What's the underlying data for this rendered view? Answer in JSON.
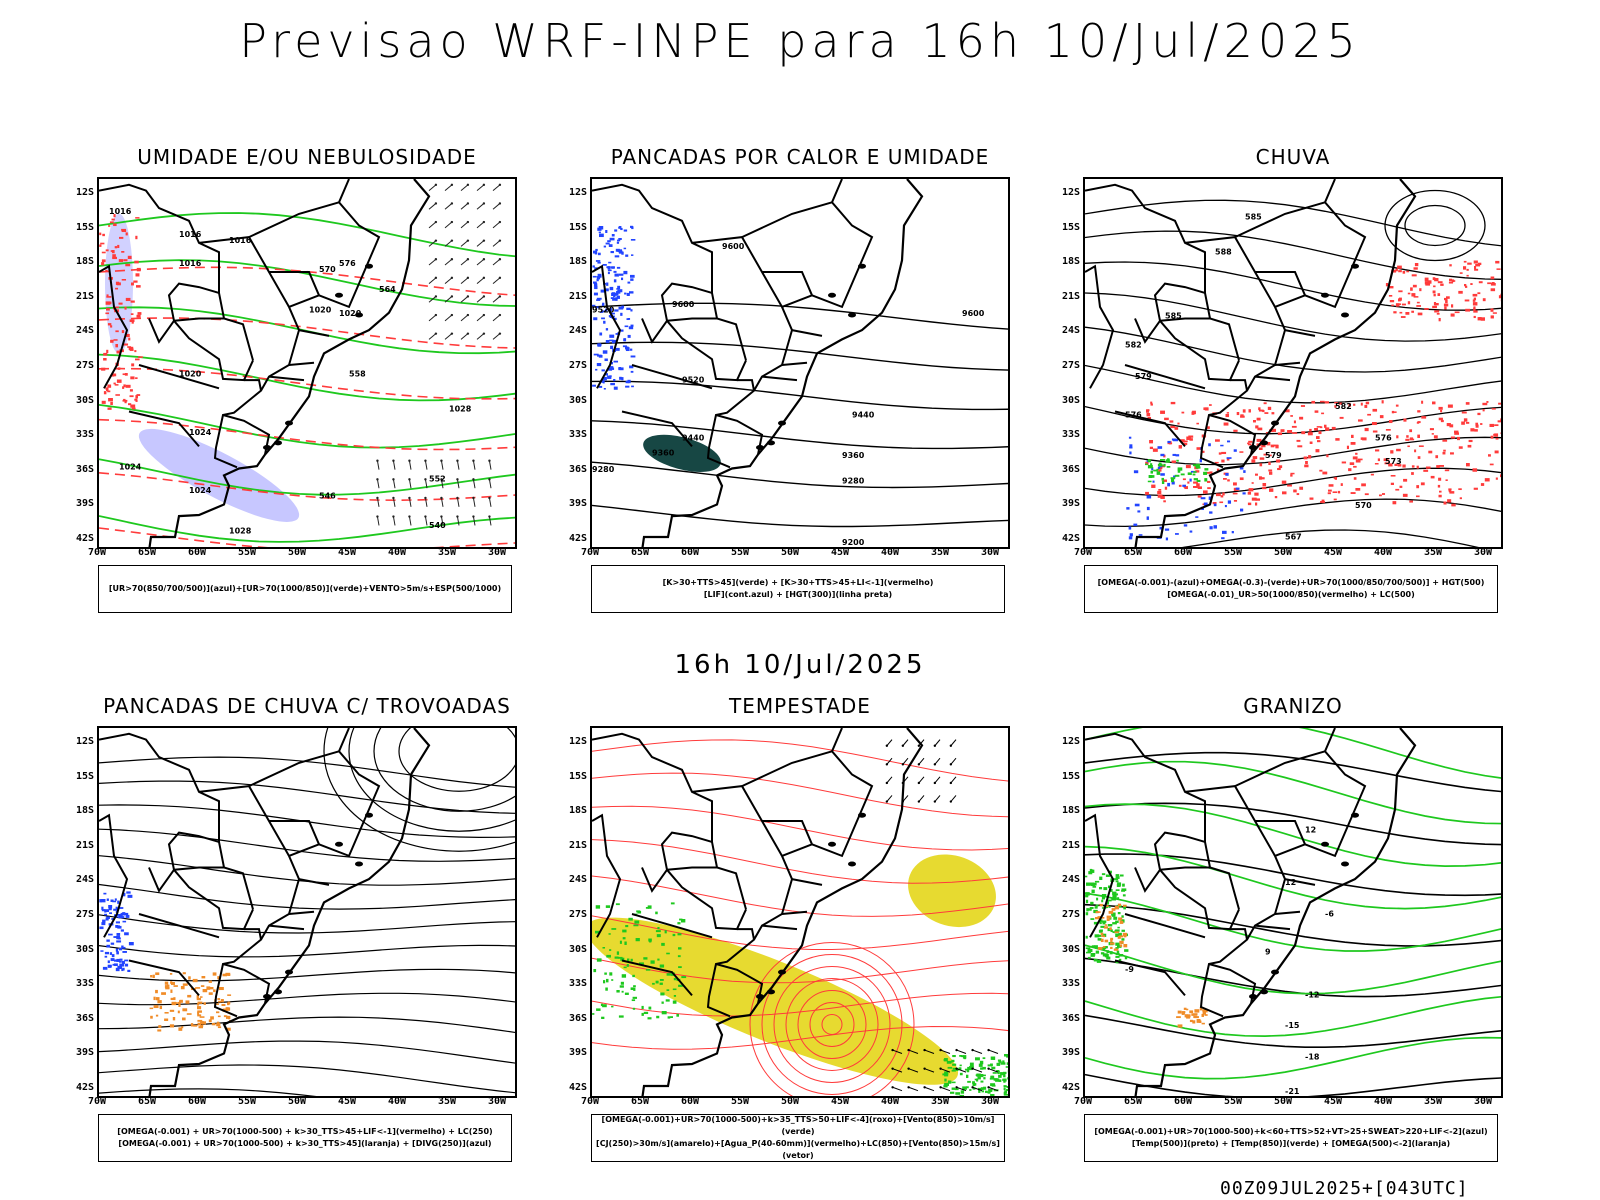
{
  "header": {
    "title": "Previsao WRF-INPE  para 16h 10/Jul/2025",
    "subtitle": "16h 10/Jul/2025",
    "footer": "00Z09JUL2025+[043UTC]"
  },
  "axes": {
    "lat_labels": [
      "12S",
      "15S",
      "18S",
      "21S",
      "24S",
      "27S",
      "30S",
      "33S",
      "36S",
      "39S",
      "42S"
    ],
    "lon_labels": [
      "70W",
      "65W",
      "60W",
      "55W",
      "50W",
      "45W",
      "40W",
      "35W",
      "30W"
    ]
  },
  "colors": {
    "land_border": "#000000",
    "humidity_blue": "#9999ff",
    "green": "#1ec81e",
    "red": "#ff3b3b",
    "blue": "#2244ff",
    "dark_teal": "#0b3d3a",
    "yellow": "#e6d825",
    "orange": "#f08c28"
  },
  "panels": [
    {
      "title": "UMIDADE E/OU NEBULOSIDADE",
      "legend": [
        "[UR>70(850/700/500)](azul)+[UR>70(1000/850)](verde)+VENTO>5m/s+ESP(500/1000)"
      ],
      "contour_labels": [
        "1016",
        "1016",
        "1016",
        "1016",
        "1020",
        "1020",
        "1024",
        "1024",
        "1028",
        "1028",
        "1024",
        "1020",
        "570",
        "576",
        "564",
        "558",
        "552",
        "546",
        "540"
      ]
    },
    {
      "title": "PANCADAS POR CALOR E UMIDADE",
      "legend": [
        "[K>30+TTS>45](verde) + [K>30+TTS>45+LI<-1](vermelho)",
        "[LIF](cont.azul) + [HGT(300)](linha preta)"
      ],
      "contour_labels": [
        "9600",
        "9600",
        "9600",
        "9520",
        "9520",
        "9440",
        "9440",
        "9360",
        "9360",
        "9280",
        "9280",
        "9200"
      ]
    },
    {
      "title": "CHUVA",
      "legend": [
        "[OMEGA(-0.001)-(azul)+OMEGA(-0.3)-(verde)+UR>70(1000/850/700/500)] + HGT(500)",
        "[OMEGA(-0.01)_UR>50(1000/850)(vermelho) + LC(500)"
      ],
      "contour_labels": [
        "585",
        "588",
        "585",
        "582",
        "579",
        "576",
        "582",
        "579",
        "576",
        "573",
        "570",
        "567"
      ]
    },
    {
      "title": "PANCADAS DE CHUVA C/ TROVOADAS",
      "legend": [
        "[OMEGA(-0.001) + UR>70(1000-500) + k>30_TTS>45+LIF<-1](vermelho) + LC(250)",
        "[OMEGA(-0.001) + UR>70(1000-500) + k>30_TTS>45](laranja) + [DIVG(250)](azul)"
      ],
      "contour_labels": []
    },
    {
      "title": "TEMPESTADE",
      "legend": [
        "[OMEGA(-0.001)+UR>70(1000-500)+k>35_TTS>50+LIF<-4](roxo)+[Vento(850)>10m/s](verde)",
        "[CJ(250)>30m/s](amarelo)+[Agua_P(40-60mm)](vermelho)+LC(850)+[Vento(850)>15m/s](vetor)"
      ],
      "contour_labels": []
    },
    {
      "title": "GRANIZO",
      "legend": [
        "[OMEGA(-0.001)+UR>70(1000-500)+k<60+TTS>52+VT>25+SWEAT>220+LIF<-2](azul)",
        "[Temp(500)](preto) + [Temp(850)](verde) + [OMEGA(500)<-2](laranja)"
      ],
      "contour_labels": [
        "-6",
        "-9",
        "-12",
        "-15",
        "-18",
        "-21",
        "12",
        "12",
        "9"
      ]
    }
  ]
}
